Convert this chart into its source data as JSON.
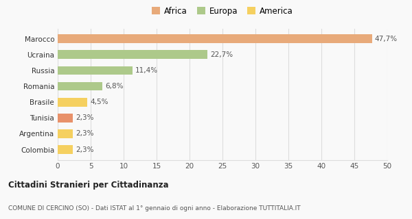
{
  "categories": [
    "Colombia",
    "Argentina",
    "Tunisia",
    "Brasile",
    "Romania",
    "Russia",
    "Ucraina",
    "Marocco"
  ],
  "values": [
    2.3,
    2.3,
    2.3,
    4.5,
    6.8,
    11.4,
    22.7,
    47.7
  ],
  "labels": [
    "2,3%",
    "2,3%",
    "2,3%",
    "4,5%",
    "6,8%",
    "11,4%",
    "22,7%",
    "47,7%"
  ],
  "colors": [
    "#f5d060",
    "#f5d060",
    "#e8916a",
    "#f5d060",
    "#adc98a",
    "#adc98a",
    "#adc98a",
    "#e8aa7a"
  ],
  "legend": [
    {
      "label": "Africa",
      "color": "#e8aa7a"
    },
    {
      "label": "Europa",
      "color": "#adc98a"
    },
    {
      "label": "America",
      "color": "#f5d060"
    }
  ],
  "xlim": [
    0,
    50
  ],
  "xticks": [
    0,
    5,
    10,
    15,
    20,
    25,
    30,
    35,
    40,
    45,
    50
  ],
  "title_bold": "Cittadini Stranieri per Cittadinanza",
  "subtitle": "COMUNE DI CERCINO (SO) - Dati ISTAT al 1° gennaio di ogni anno - Elaborazione TUTTITALIA.IT",
  "bg_color": "#f9f9f9",
  "grid_color": "#dddddd"
}
